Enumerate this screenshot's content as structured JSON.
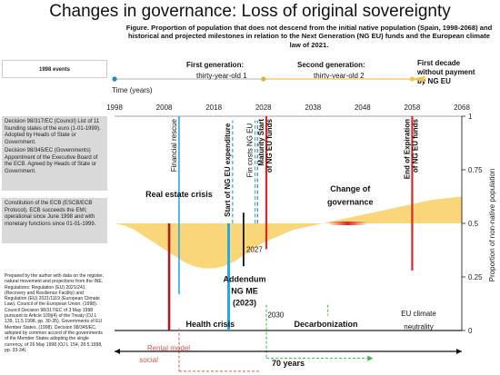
{
  "title": "Changes in governance: Loss of original sovereignty",
  "subtitle": "Figure. Proportion of population that does not descend from the initial native population (Spain, 1998-2068) and historical and projected milestones in relation to the Next Generation (NG EU) funds and the European climate law of 2021.",
  "side": {
    "header": "1998 events",
    "events": [
      "Decision 98/317/EC (Council) List of 11 founding states of the euro (1-01-1999). Adopted by Heads of State or Government.",
      "Decision 98/345/EC (Governments) Appointment of the Executive Board of the ECB. Agreed by Heads of State or Government.",
      "Constitution of the ECB (ESCB/ECB Protocol). ECB succeeds the EMI; operational since June 1998 and with monetary functions since 01-01-1999."
    ],
    "source": "Prepared by the author with data on the register, natural movement and projections from the INE. Regulations: Regulation (EU) 2021/241 (Recovery and Resilience Facility) and Regulation (EU) 2021/1119 (European Climate Law). Council of the European Union. (1998). Council Decision 98/317/EC of 3 May 1998 pursuant to Article 109j(4) of the Treaty (OJ L 139, 11.5.1998, pp. 30-35). Governments of EU Member States. (1998). Decision 98/345/EC, adopted by common accord of the governments of the Member States adopting the single currency, of 26 May 1998 (OJ L 154, 28.5.1998, pp. 33-34)."
  },
  "chart_data": {
    "type": "area",
    "xlabel": "Time (years)",
    "ylabel": "Proportion of non-native population",
    "xlim": [
      1998,
      2068
    ],
    "xticks": [
      1998,
      2008,
      2018,
      2028,
      2038,
      2048,
      2058,
      2068
    ],
    "ylim": [
      0,
      1
    ],
    "yticks": [
      0,
      0.25,
      0.5,
      0.75,
      1
    ],
    "ytick_labels": [
      "0",
      "0.25",
      "0.5",
      "0.75",
      "1"
    ],
    "grid": false,
    "colors": {
      "area": "#fad67a",
      "red": "#d62a2a",
      "blue": "#29a8e0",
      "green": "#3ab54a",
      "dark_red": "#a61e1e"
    },
    "baseline": 0.5,
    "series": [
      {
        "x": [
          1998,
          2000,
          2002,
          2004,
          2006,
          2008,
          2010,
          2012,
          2014,
          2016,
          2018,
          2020,
          2022,
          2024,
          2026,
          2028,
          2030,
          2032,
          2034,
          2036,
          2038,
          2040,
          2042,
          2044,
          2046,
          2048,
          2050,
          2052,
          2054,
          2056,
          2058,
          2060,
          2062,
          2064,
          2066,
          2068
        ],
        "y": [
          0.5,
          0.49,
          0.47,
          0.44,
          0.41,
          0.38,
          0.35,
          0.32,
          0.3,
          0.29,
          0.29,
          0.3,
          0.32,
          0.35,
          0.38,
          0.41,
          0.43,
          0.45,
          0.47,
          0.48,
          0.49,
          0.5,
          0.51,
          0.52,
          0.53,
          0.54,
          0.55,
          0.56,
          0.57,
          0.58,
          0.59,
          0.6,
          0.61,
          0.615,
          0.62,
          0.625
        ]
      }
    ],
    "legend": [
      {
        "label": "First generation: thirty-year-old 1",
        "color": "#1f8db5",
        "x": 1998
      },
      {
        "label": "Second generation: thirty-year-old 2",
        "color": "#e0b040",
        "x": 2028
      },
      {
        "label": "First decade without payment by NG EU",
        "color": "#f5c541",
        "x": 2058
      }
    ],
    "milestones": [
      {
        "x": 2011,
        "y0": 0.17,
        "y1": 1.0,
        "color": "#29a8e0",
        "width": 1.6,
        "dash": false,
        "label": "Financial rescue"
      },
      {
        "x": 2009,
        "y0": 0.0,
        "y1": 0.5,
        "color": "#a61e1e",
        "width": 2.6,
        "dash": false,
        "label": ""
      },
      {
        "x": 2021,
        "y0": 0.0,
        "y1": 0.5,
        "color": "#29a8e0",
        "width": 3.0,
        "dash": false,
        "label": ""
      },
      {
        "x": 2021.8,
        "y0": 0.5,
        "y1": 0.98,
        "color": "#29a8e0",
        "width": 1.2,
        "dash": true,
        "label": "Start of NG EU expenditure"
      },
      {
        "x": 2024,
        "y0": 0.3,
        "y1": 0.55,
        "color": "#111111",
        "width": 1.8,
        "dash": false,
        "label": ""
      },
      {
        "x": 2026.3,
        "y0": 0.5,
        "y1": 0.98,
        "color": "#29a8e0",
        "width": 1.0,
        "dash": true,
        "label": "Fin costs NG EU"
      },
      {
        "x": 2026.8,
        "y0": 0.5,
        "y1": 0.98,
        "color": "#1f5f8b",
        "width": 1.0,
        "dash": true,
        "label": ""
      },
      {
        "x": 2028.6,
        "y0": 0.38,
        "y1": 1.0,
        "color": "#d62a2a",
        "width": 2.2,
        "dash": false,
        "label": "Maturity Start of NG EU funds"
      },
      {
        "x": 2058,
        "y0": 0.28,
        "y1": 1.0,
        "color": "#d62a2a",
        "width": 2.2,
        "dash": false,
        "label": "End of Expiration of NG EU funds"
      }
    ],
    "annotations": [
      {
        "text": "Real estate crisis",
        "x": 2011,
        "y": 0.635,
        "bold": true
      },
      {
        "text": "Change of",
        "x": 2045.5,
        "y": 0.66,
        "bold": true
      },
      {
        "text": "governance",
        "x": 2045.5,
        "y": 0.6,
        "bold": true
      },
      {
        "text": "2027",
        "x": 2026.2,
        "y": 0.38,
        "bold": false
      },
      {
        "text": "Addendum",
        "x": 2024.2,
        "y": 0.24,
        "bold": true
      },
      {
        "text": "NG ME",
        "x": 2024.2,
        "y": 0.185,
        "bold": true
      },
      {
        "text": "(2023)",
        "x": 2024.2,
        "y": 0.13,
        "bold": true
      },
      {
        "text": "2030",
        "x": 2030.5,
        "y": 0.075,
        "bold": false
      },
      {
        "text": "Health crisis",
        "x": 2017.3,
        "y": 0.03,
        "bold": true
      },
      {
        "text": "Decarbonization",
        "x": 2040.6,
        "y": 0.03,
        "bold": true
      },
      {
        "text": "EU climate",
        "x": 2059.3,
        "y": 0.08,
        "bold": false
      },
      {
        "text": "neutrality",
        "x": 2059.3,
        "y": 0.02,
        "bold": false
      },
      {
        "text": "Rental model",
        "x": 2008.9,
        "y": -0.08,
        "bold": false
      },
      {
        "text": "social",
        "x": 2004.9,
        "y": -0.135,
        "bold": false
      }
    ],
    "span_label": "70 years"
  }
}
